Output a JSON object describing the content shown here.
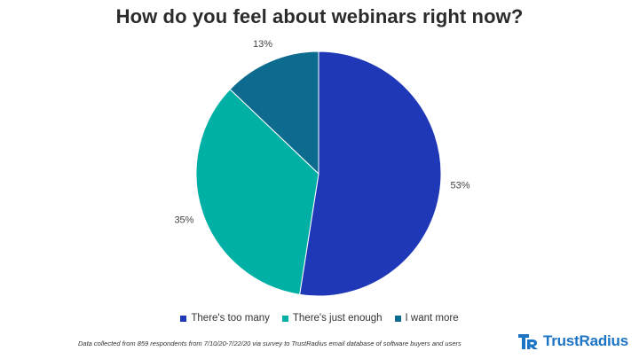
{
  "chart_data": {
    "type": "pie",
    "title": "How do you feel about webinars right now?",
    "categories": [
      "There's too many",
      "There's just enough",
      "I want more"
    ],
    "values": [
      53,
      35,
      13
    ],
    "labels": [
      "53%",
      "35%",
      "13%"
    ],
    "colors": [
      "#1f38b8",
      "#00b0a4",
      "#0d6b8f"
    ],
    "legend_position": "bottom"
  },
  "footnote": "Data collected from 859 respondents from 7/10/20-7/22/20 via survey to TrustRadius email database of software buyers and users",
  "brand": {
    "name": "TrustRadius",
    "logo_icon": "trustradius-logo-icon",
    "color": "#1c74c4"
  }
}
